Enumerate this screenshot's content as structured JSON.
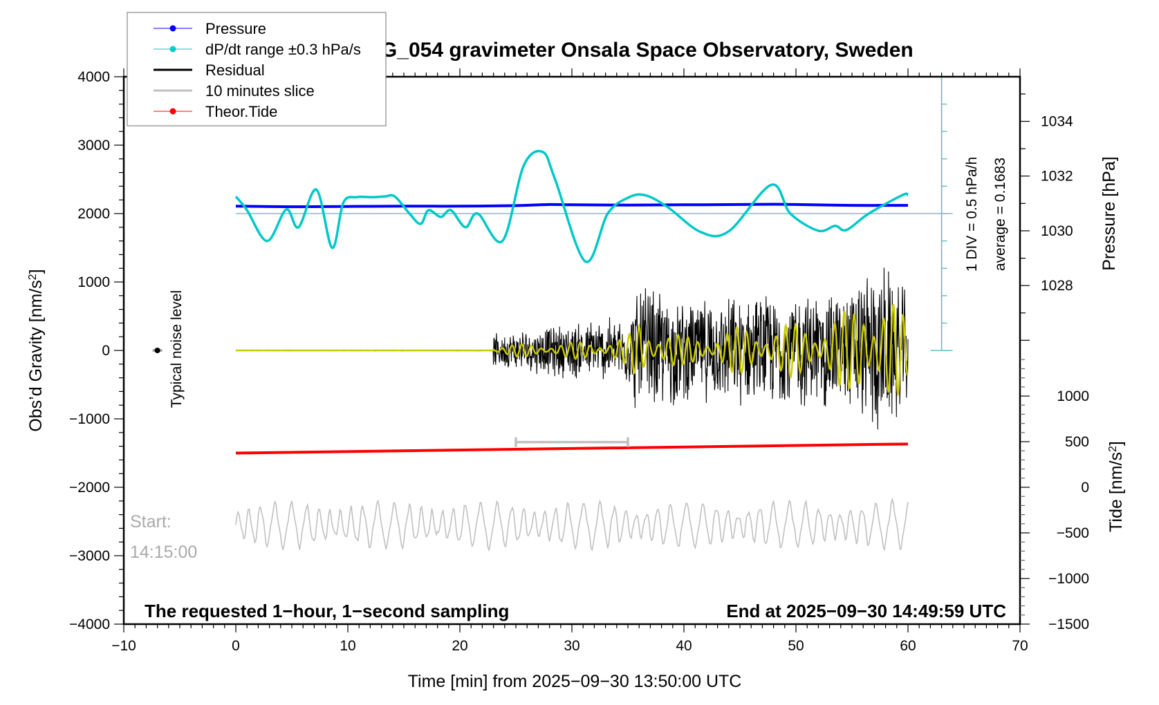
{
  "chart_data": {
    "type": "line",
    "title": "SCG_054 gravimeter Onsala Space Observatory, Sweden",
    "xlabel": "Time [min] from 2025−09−30 13:50:00 UTC",
    "ylabel_left": "Obs’d Gravity [nm/s²]",
    "ylabel_left_main": "Obs’d Gravity [nm/s",
    "ylabel_left_sup": "2",
    "ylabel_left_close": "]",
    "ylabel_right_pressure": "Pressure [hPa]",
    "ylabel_right_tide_main": "Tide [nm/s",
    "ylabel_right_tide_sup": "2",
    "ylabel_right_tide_close": "]",
    "xlim": [
      -10,
      70
    ],
    "ylim_left": [
      -4000,
      4000
    ],
    "pressure_axis": {
      "ticks": [
        1028,
        1030,
        1032,
        1034
      ],
      "labels": [
        "1028",
        "1030",
        "1032",
        "1034"
      ],
      "value_at_gravity_0": 1025.63,
      "hpa_per_1000_gravity": 2.5
    },
    "tide_axis": {
      "ticks": [
        -1500,
        -1000,
        -500,
        0,
        500,
        1000
      ],
      "labels": [
        "−1500",
        "−1000",
        "−500",
        "0",
        "500",
        "1000"
      ],
      "gravity_at_tide_0": -2000,
      "gravity_per_tide_unit": 1.333
    },
    "x_ticks": [
      -10,
      0,
      10,
      20,
      30,
      40,
      50,
      60,
      70
    ],
    "x_tick_labels": [
      "−10",
      "0",
      "10",
      "20",
      "30",
      "40",
      "50",
      "60",
      "70"
    ],
    "y_ticks": [
      -4000,
      -3000,
      -2000,
      -1000,
      0,
      1000,
      2000,
      3000,
      4000
    ],
    "y_tick_labels": [
      "−4000",
      "−3000",
      "−2000",
      "−1000",
      "0",
      "1000",
      "2000",
      "3000",
      "4000"
    ],
    "grid": false,
    "legend_position": "top-left",
    "legend": [
      {
        "label": "Pressure",
        "color": "#0000ff",
        "marker": true,
        "thick": false
      },
      {
        "label": "dP/dt range ±0.3 hPa/s",
        "color": "#00cccc",
        "marker": true,
        "thick": false
      },
      {
        "label": "Residual",
        "color": "#000000",
        "marker": false,
        "thick": true
      },
      {
        "label": "10 minutes slice",
        "color": "#c0c0c0",
        "marker": false,
        "thick": true
      },
      {
        "label": "Theor.Tide",
        "color": "#ff0000",
        "marker": true,
        "thick": false
      }
    ],
    "series": [
      {
        "name": "Pressure",
        "color": "#0000ff",
        "axis": "pressure_hPa",
        "x": [
          0,
          5,
          10,
          15,
          20,
          25,
          28,
          30,
          35,
          40,
          45,
          48,
          50,
          55,
          60
        ],
        "values": [
          1030.9,
          1030.88,
          1030.89,
          1030.9,
          1030.9,
          1030.92,
          1030.96,
          1030.95,
          1030.94,
          1030.95,
          1030.96,
          1030.97,
          1030.96,
          1030.93,
          1030.93
        ]
      },
      {
        "name": "dP/dt",
        "color": "#00c8c8",
        "axis": "gravity_scale_1DIV_0.5hPa_per_h",
        "x": [
          0,
          1,
          2.8,
          4.5,
          5.6,
          7.2,
          8.6,
          9.6,
          10.8,
          12.2,
          13.3,
          14.2,
          15.5,
          16.5,
          17.2,
          18.3,
          19.2,
          20.5,
          21.6,
          23.8,
          25.7,
          27.4,
          28.5,
          31.2,
          33.2,
          35,
          36.5,
          38.5,
          41.5,
          44,
          47.8,
          49.5,
          52,
          53.5,
          54.5,
          56.5,
          59.5,
          60
        ],
        "values": [
          2250,
          2050,
          1600,
          2060,
          1800,
          2350,
          1500,
          2160,
          2240,
          2240,
          2250,
          2250,
          2000,
          1850,
          2050,
          1950,
          2050,
          1800,
          2000,
          1600,
          2700,
          2900,
          2500,
          1300,
          2000,
          2230,
          2270,
          2100,
          1730,
          1740,
          2420,
          2000,
          1750,
          1820,
          1760,
          2000,
          2270,
          2270
        ]
      },
      {
        "name": "dP/dt average baseline",
        "color": "#6fc6c6",
        "average": 0.1683,
        "gravity_level": 2000
      },
      {
        "name": "Residual",
        "color": "#000000",
        "axis": "gravity",
        "x_range": [
          0,
          60
        ],
        "onset_min": 23,
        "envelope_x": [
          23,
          30,
          35,
          36,
          40,
          50,
          55,
          57,
          58,
          60
        ],
        "envelope_amplitude": [
          250,
          450,
          550,
          1100,
          800,
          900,
          1000,
          1400,
          1300,
          900
        ]
      },
      {
        "name": "Filtered residual",
        "color": "#cccc00",
        "axis": "gravity",
        "x_range": [
          0,
          60
        ],
        "envelope_x": [
          23,
          30,
          35,
          36,
          40,
          45,
          50,
          55,
          56,
          58,
          60
        ],
        "envelope_amplitude": [
          80,
          120,
          200,
          500,
          200,
          350,
          400,
          600,
          1000,
          900,
          450
        ]
      },
      {
        "name": "Theor.Tide",
        "color": "#ff0000",
        "axis": "tide",
        "x": [
          0,
          60
        ],
        "values": [
          375,
          475
        ]
      },
      {
        "name": "10 minutes slice",
        "color": "#c0c0c0",
        "axis": "gravity",
        "baseline": -2550,
        "amplitude_range": [
          -2800,
          -2150
        ],
        "x_range": [
          0,
          60
        ]
      }
    ],
    "slice_marker": {
      "x_start": 25,
      "x_end": 35,
      "y": -1340,
      "color": "#c0c0c0"
    },
    "noise_marker": {
      "x": -7,
      "y": 0,
      "label": "Typical noise level"
    },
    "dpdt_scale_bar": {
      "x": 63,
      "y_range": [
        0,
        4000
      ],
      "divisions": 10,
      "label_div": "1 DIV = 0.5 hPa/h",
      "label_avg": "average = 0.1683"
    },
    "annotations": {
      "start_label": "Start:",
      "start_time": "14:15:00",
      "bottom_left": "The requested 1−hour, 1−second sampling",
      "bottom_right": "End at 2025−09−30 14:49:59 UTC"
    }
  }
}
